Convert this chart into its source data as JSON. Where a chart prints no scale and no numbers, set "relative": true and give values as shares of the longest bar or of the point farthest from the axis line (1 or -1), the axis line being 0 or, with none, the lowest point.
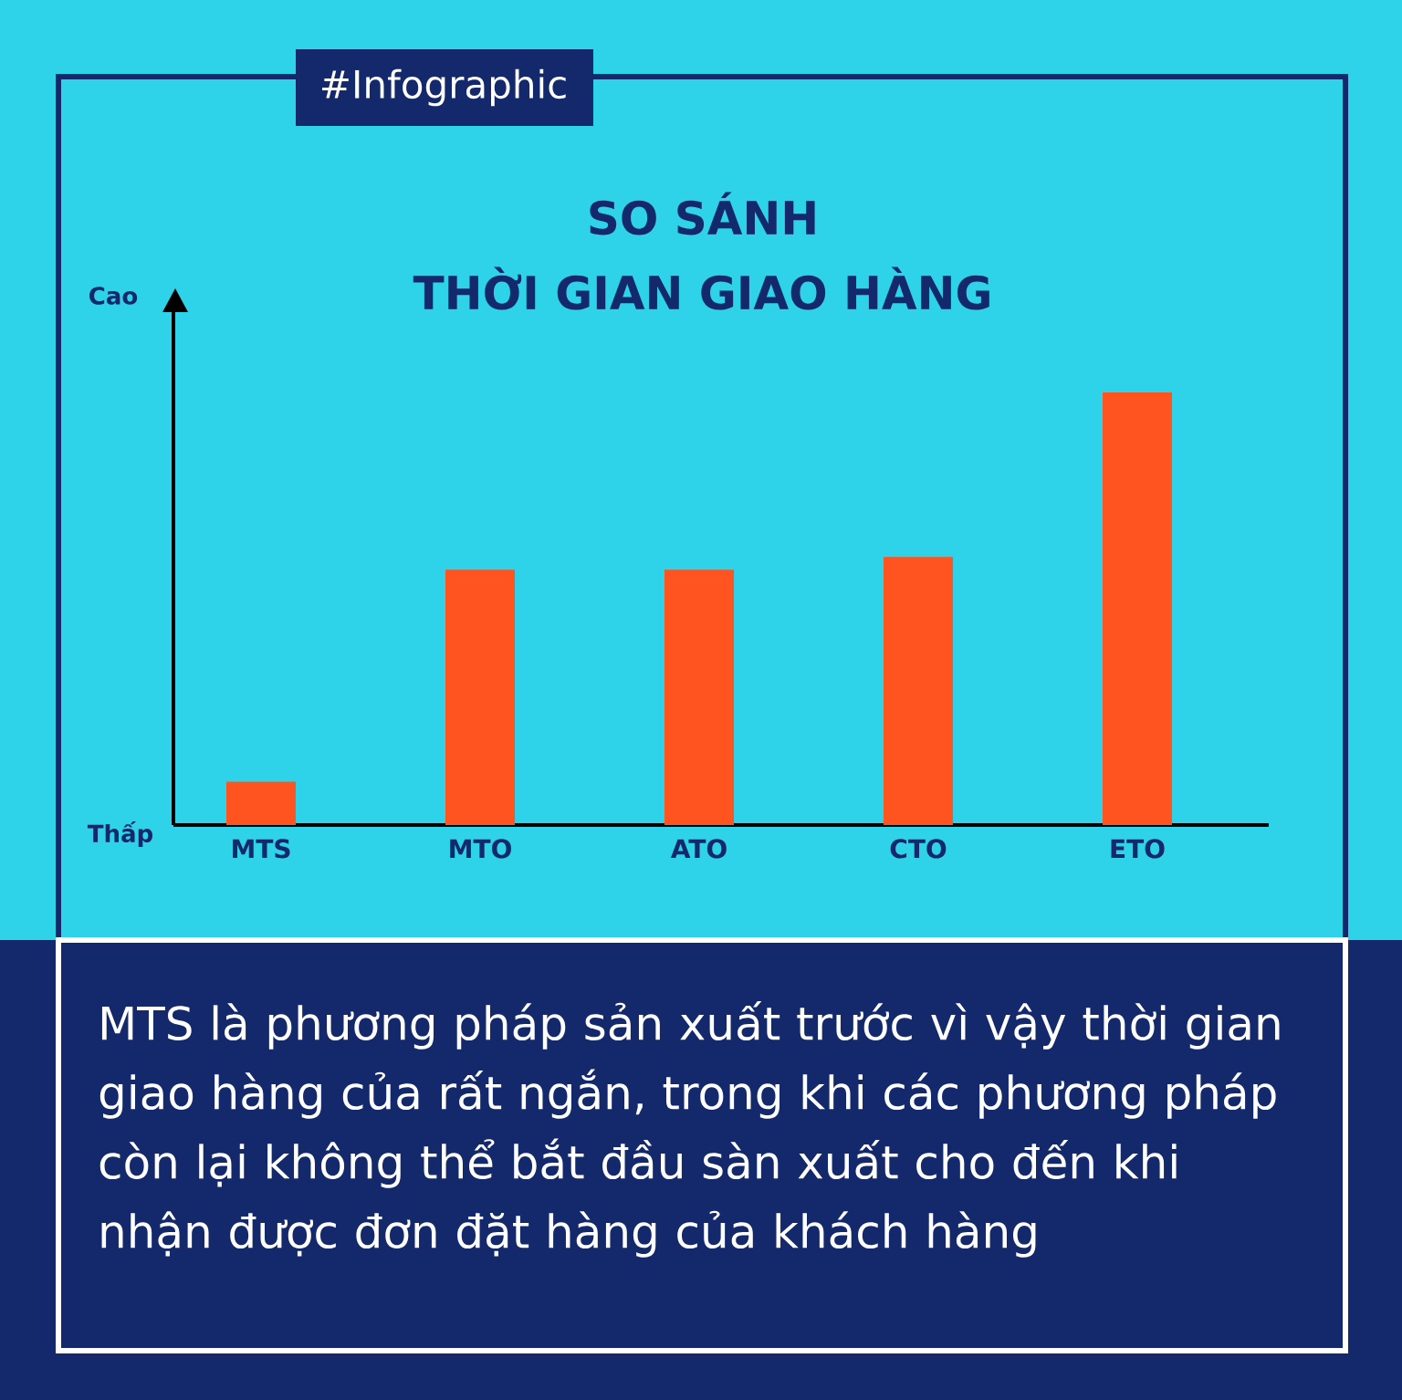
{
  "chart_data": {
    "type": "bar",
    "title": "SO SÁNH",
    "subtitle": "THỜI GIAN GIAO HÀNG",
    "categories": [
      "MTS",
      "MTO",
      "ATO",
      "CTO",
      "ETO"
    ],
    "values": [
      0.1,
      0.59,
      0.59,
      0.62,
      1
    ],
    "color": "#ff5420",
    "relative": true,
    "annotations": [
      "#Infographic",
      "Cao",
      "Thấp",
      "MTS là phương pháp sản xuất trước vì vậy thời gian giao hàng của rất ngắn, trong khi các phương pháp còn lại không thể bắt đầu sàn xuất cho đến khi nhận được đơn đặt hàng của khách hàng"
    ]
  }
}
